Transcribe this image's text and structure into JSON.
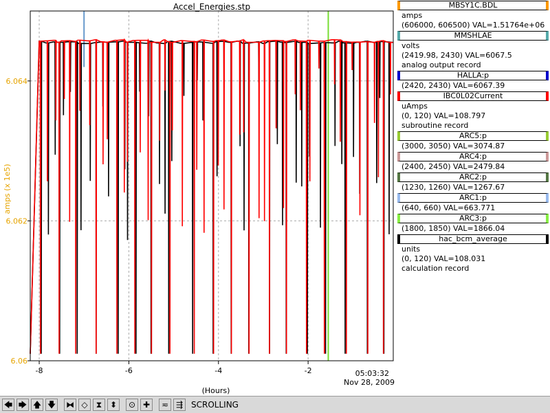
{
  "window_title": "Accel_Energies.stp",
  "chart_data": {
    "type": "line",
    "title": "Accel_Energies.stp",
    "xlabel": "(Hours)",
    "ylabel": "amps (x 1e5)",
    "x_ticks": [
      "-8",
      "-6",
      "-4",
      "-2"
    ],
    "y_ticks": [
      "6.06",
      "6.062",
      "6.064"
    ],
    "xlim": [
      -8.2,
      -0.1
    ],
    "ylim": [
      6.06,
      6.065
    ],
    "timestamp_time": "05:03:32",
    "timestamp_date": "Nov 28, 2009",
    "grid": true,
    "series": [
      {
        "name": "MBSY1C.BDL",
        "color": "#000000",
        "style": "steps"
      },
      {
        "name": "IBC0L02Current",
        "color": "#ff0000",
        "style": "steps"
      }
    ],
    "vertical_markers": [
      {
        "name": "HALLA:p",
        "x": -7.0,
        "color": "#6699cc"
      },
      {
        "name": "ARC3:p",
        "x": -1.55,
        "color": "#77dd33"
      }
    ]
  },
  "legend": [
    {
      "name": "MBSY1C.BDL",
      "color": "#ff9900",
      "lines": [
        "amps",
        "(606000, 606500)  VAL=1.51764e+06"
      ]
    },
    {
      "name": "MMSHLAE",
      "color": "#55aaaa",
      "lines": [
        "volts",
        "(2419.98, 2430) VAL=6067.5",
        "analog output record"
      ]
    },
    {
      "name": "HALLA:p",
      "color": "#0000cc",
      "lines": [
        "(2420, 2430) VAL=6067.39"
      ]
    },
    {
      "name": "IBC0L02Current",
      "color": "#ff0000",
      "lines": [
        "uAmps",
        "(0, 120) VAL=108.797",
        "subroutine record"
      ]
    },
    {
      "name": "ARC5:p",
      "color": "#99cc33",
      "lines": [
        "(3000, 3050) VAL=3074.87"
      ]
    },
    {
      "name": "ARC4:p",
      "color": "#cc9999",
      "lines": [
        "(2400, 2450) VAL=2479.84"
      ]
    },
    {
      "name": "ARC2:p",
      "color": "#557744",
      "lines": [
        "(1230, 1260) VAL=1267.67"
      ]
    },
    {
      "name": "ARC1:p",
      "color": "#99bbee",
      "lines": [
        "(640, 660) VAL=663.771"
      ]
    },
    {
      "name": "ARC3:p",
      "color": "#88ee44",
      "lines": [
        "(1800, 1850) VAL=1866.04"
      ]
    },
    {
      "name": "hac_bcm_average",
      "color": "#000000",
      "lines": [
        "units",
        "(0, 120) VAL=108.031",
        "calculation record"
      ]
    }
  ],
  "toolbar": {
    "buttons": [
      {
        "name": "pan-left-button",
        "icon": "arrow-left-icon",
        "glyph": "🡄"
      },
      {
        "name": "pan-right-button",
        "icon": "arrow-right-icon",
        "glyph": "🡆"
      },
      {
        "name": "pan-up-button",
        "icon": "arrow-up-icon",
        "glyph": "🡅"
      },
      {
        "name": "pan-down-button",
        "icon": "arrow-down-icon",
        "glyph": "🡇"
      },
      {
        "name": "zoom-in-x-button",
        "icon": "zoom-in-x-icon",
        "glyph": "⧓"
      },
      {
        "name": "zoom-out-x-button",
        "icon": "zoom-out-x-icon",
        "glyph": "◇"
      },
      {
        "name": "zoom-in-y-button",
        "icon": "zoom-in-y-icon",
        "glyph": "⧗"
      },
      {
        "name": "zoom-out-y-button",
        "icon": "zoom-out-y-icon",
        "glyph": "⬍"
      },
      {
        "name": "record-button",
        "icon": "record-icon",
        "glyph": "⊙"
      },
      {
        "name": "add-button",
        "icon": "plus-icon",
        "glyph": "✚"
      },
      {
        "name": "scroll-mode-button",
        "icon": "scroll-mode-icon",
        "glyph": "≂"
      },
      {
        "name": "pause-button",
        "icon": "pause-icon",
        "glyph": "⇶"
      }
    ],
    "status": "SCROLLING"
  }
}
